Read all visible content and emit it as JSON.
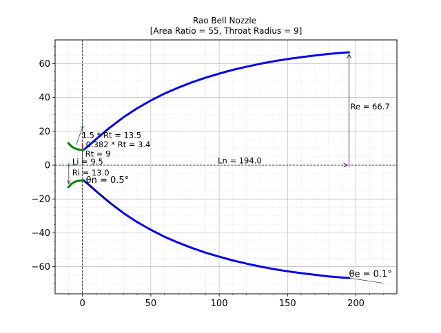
{
  "chart_data": {
    "type": "line",
    "title": "Rao Bell Nozzle",
    "subtitle": "[Area Ratio = 55, Throat Radius = 9]",
    "xlabel": "",
    "ylabel": "",
    "xlim": [
      -20,
      230
    ],
    "ylim": [
      -76,
      74
    ],
    "x_ticks": [
      0,
      50,
      100,
      150,
      200
    ],
    "y_ticks": [
      -60,
      -40,
      -20,
      0,
      20,
      40,
      60
    ],
    "grid": true,
    "series": [
      {
        "color": "#0000ee",
        "points": [
          [
            0.8,
            9.0
          ],
          [
            5,
            11.8
          ],
          [
            10,
            15.4
          ],
          [
            20,
            22.2
          ],
          [
            30,
            28.3
          ],
          [
            40,
            33.6
          ],
          [
            50,
            38.2
          ],
          [
            60,
            42.3
          ],
          [
            70,
            45.8
          ],
          [
            80,
            48.9
          ],
          [
            90,
            51.7
          ],
          [
            100,
            54.1
          ],
          [
            110,
            56.3
          ],
          [
            120,
            58.2
          ],
          [
            130,
            59.9
          ],
          [
            140,
            61.4
          ],
          [
            150,
            62.7
          ],
          [
            160,
            63.8
          ],
          [
            170,
            64.8
          ],
          [
            180,
            65.7
          ],
          [
            190,
            66.4
          ],
          [
            195,
            66.7
          ]
        ]
      },
      {
        "color": "#0000ee",
        "points": [
          [
            0.8,
            -9.0
          ],
          [
            5,
            -11.8
          ],
          [
            10,
            -15.4
          ],
          [
            20,
            -22.2
          ],
          [
            30,
            -28.3
          ],
          [
            40,
            -33.6
          ],
          [
            50,
            -38.2
          ],
          [
            60,
            -42.3
          ],
          [
            70,
            -45.8
          ],
          [
            80,
            -48.9
          ],
          [
            90,
            -51.7
          ],
          [
            100,
            -54.1
          ],
          [
            110,
            -56.3
          ],
          [
            120,
            -58.2
          ],
          [
            130,
            -59.9
          ],
          [
            140,
            -61.4
          ],
          [
            150,
            -62.7
          ],
          [
            160,
            -63.8
          ],
          [
            170,
            -64.8
          ],
          [
            180,
            -65.7
          ],
          [
            190,
            -66.4
          ],
          [
            195,
            -66.7
          ]
        ]
      },
      {
        "color": "#008000",
        "points": [
          [
            -10.3,
            13.0
          ],
          [
            -8,
            11.1
          ],
          [
            -6,
            10.0
          ],
          [
            -4,
            9.4
          ],
          [
            -2,
            9.1
          ],
          [
            0,
            9.0
          ],
          [
            0.8,
            9.0
          ]
        ]
      },
      {
        "color": "#008000",
        "points": [
          [
            -10.3,
            -13.0
          ],
          [
            -8,
            -11.1
          ],
          [
            -6,
            -10.0
          ],
          [
            -4,
            -9.4
          ],
          [
            -2,
            -9.1
          ],
          [
            0,
            -9.0
          ],
          [
            0.8,
            -9.0
          ]
        ]
      }
    ],
    "annotations": [
      {
        "text": "Re = 66.7",
        "x": 196,
        "y": 33,
        "color": "#000000"
      },
      {
        "text": "Ln = 194.0",
        "x": 99,
        "y": 1,
        "color": "#000000"
      },
      {
        "text": "1.5 * Rt = 13.5",
        "x": -0.5,
        "y": 16,
        "color": "#000000"
      },
      {
        "text": "0.382 * Rt = 3.4",
        "x": 2.5,
        "y": 10.5,
        "color": "#000000"
      },
      {
        "text": "Rt = 9",
        "x": 2,
        "y": 5,
        "color": "#000000"
      },
      {
        "text": "Li = 9.5",
        "x": -7.5,
        "y": 0.5,
        "color": "#000000"
      },
      {
        "text": "Ri = 13.0",
        "x": -7.5,
        "y": -6,
        "color": "#000000"
      },
      {
        "text": "θn = 0.5°",
        "x": 2.5,
        "y": -10.5,
        "color": "#000000"
      },
      {
        "text": "θe = 0.1°",
        "x": 195,
        "y": -66,
        "color": "#000000"
      }
    ]
  }
}
